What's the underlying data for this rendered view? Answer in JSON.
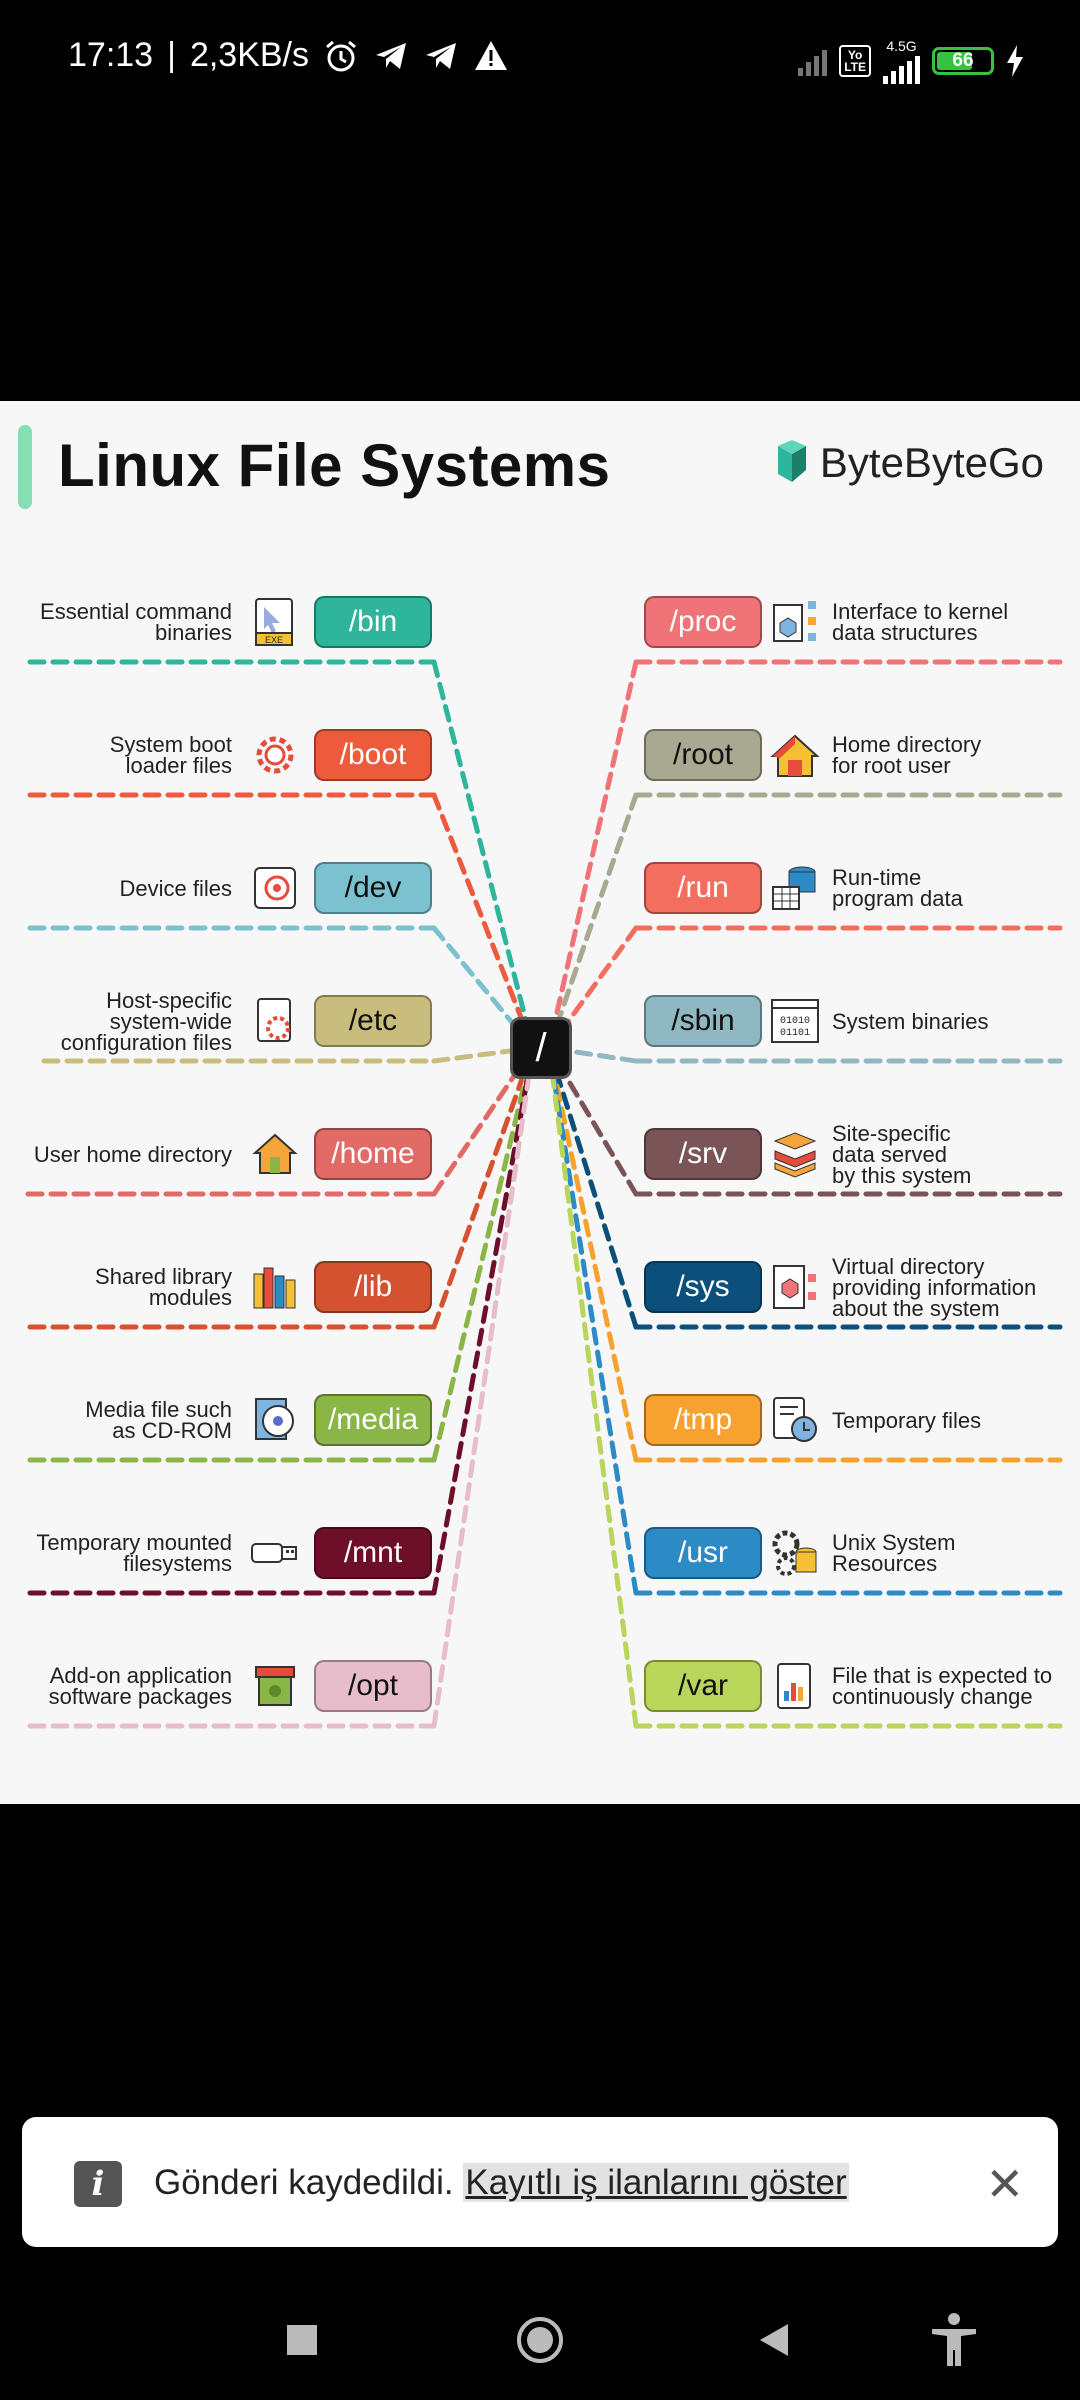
{
  "status_bar": {
    "time": "17:13",
    "speed": "2,3KB/s",
    "network_type": "4.5G",
    "volte_label": "Yo\nLTE",
    "battery_level": "66"
  },
  "infographic": {
    "title": "Linux File Systems",
    "brand": "ByteByteGo",
    "root_label": "/",
    "left_items": [
      {
        "path": "/bin",
        "desc": "Essential command\nbinaries",
        "color": "#2fb59c",
        "icon": "exe-file-icon",
        "icon_text": "EXE"
      },
      {
        "path": "/boot",
        "desc": "System boot\nloader files",
        "color": "#ee5a3c",
        "icon": "gear-icon"
      },
      {
        "path": "/dev",
        "desc": "Device files",
        "color": "#7cc1cf",
        "icon": "device-icon"
      },
      {
        "path": "/etc",
        "desc": "Host-specific\nsystem-wide\nconfiguration files",
        "color": "#c9bd7e",
        "icon": "config-file-icon"
      },
      {
        "path": "/home",
        "desc": "User home directory",
        "color": "#e26a66",
        "icon": "home-icon"
      },
      {
        "path": "/lib",
        "desc": "Shared library\nmodules",
        "color": "#d4522f",
        "icon": "library-icon"
      },
      {
        "path": "/media",
        "desc": "Media file such\nas CD-ROM",
        "color": "#8ab547",
        "icon": "cd-icon"
      },
      {
        "path": "/mnt",
        "desc": "Temporary mounted\nfilesystems",
        "color": "#6e0f2a",
        "icon": "usb-icon"
      },
      {
        "path": "/opt",
        "desc": "Add-on application\nsoftware packages",
        "color": "#e7bccb",
        "icon": "package-icon"
      }
    ],
    "right_items": [
      {
        "path": "/proc",
        "desc": "Interface to kernel\ndata structures",
        "color": "#f07378",
        "icon": "kernel-icon"
      },
      {
        "path": "/root",
        "desc": "Home directory\nfor root user",
        "color": "#a9a890",
        "icon": "root-home-icon"
      },
      {
        "path": "/run",
        "desc": "Run-time\nprogram data",
        "color": "#f46e60",
        "icon": "database-icon"
      },
      {
        "path": "/sbin",
        "desc": "System binaries",
        "color": "#90b8c2",
        "icon": "binary-icon",
        "icon_text": "01010\n01101"
      },
      {
        "path": "/srv",
        "desc": "Site-specific\ndata served\nby this system",
        "color": "#7a5456",
        "icon": "server-data-icon"
      },
      {
        "path": "/sys",
        "desc": "Virtual directory\nproviding information\nabout the system",
        "color": "#0b4f7a",
        "icon": "virtual-dir-icon"
      },
      {
        "path": "/tmp",
        "desc": "Temporary files",
        "color": "#f7a12e",
        "icon": "temp-file-icon"
      },
      {
        "path": "/usr",
        "desc": "Unix System\nResources",
        "color": "#2c8ac5",
        "icon": "resources-icon"
      },
      {
        "path": "/var",
        "desc": "File that is expected to\ncontinuously change",
        "color": "#b9d65a",
        "icon": "chart-file-icon"
      }
    ]
  },
  "toast": {
    "message": "Gönderi kaydedildi.",
    "link": "Kayıtlı iş ilanlarını göster"
  },
  "nav": [
    "recent-apps-icon",
    "home-icon",
    "back-icon",
    "accessibility-icon"
  ]
}
